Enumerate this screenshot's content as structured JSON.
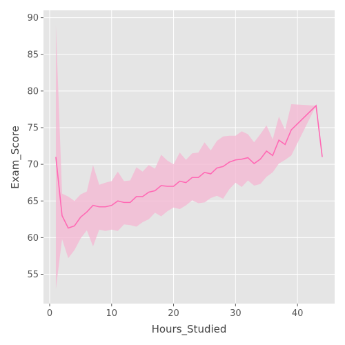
{
  "chart_data": {
    "type": "line",
    "xlabel": "Hours_Studied",
    "ylabel": "Exam_Score",
    "xlim": [
      -1,
      46
    ],
    "ylim": [
      51,
      91
    ],
    "xticks": [
      0,
      10,
      20,
      30,
      40
    ],
    "yticks": [
      55,
      60,
      65,
      70,
      75,
      80,
      85,
      90
    ],
    "grid": true,
    "colors": {
      "line": "#ff69b4",
      "band": "#f4b6d2",
      "background": "#e5e5e5",
      "grid": "#ffffff"
    },
    "series": [
      {
        "x": [
          1,
          2,
          3,
          4,
          5,
          6,
          7,
          8,
          9,
          10,
          11,
          12,
          13,
          14,
          15,
          16,
          17,
          18,
          19,
          20,
          21,
          22,
          23,
          24,
          25,
          26,
          27,
          28,
          29,
          30,
          31,
          32,
          33,
          34,
          35,
          36,
          37,
          38,
          39,
          43,
          44
        ],
        "y": [
          71.0,
          63.0,
          61.3,
          61.6,
          62.8,
          63.5,
          64.4,
          64.2,
          64.2,
          64.4,
          65.0,
          64.8,
          64.8,
          65.6,
          65.6,
          66.2,
          66.4,
          67.1,
          67.0,
          67.0,
          67.7,
          67.5,
          68.2,
          68.2,
          68.9,
          68.7,
          69.5,
          69.7,
          70.3,
          70.6,
          70.7,
          70.9,
          70.1,
          70.7,
          71.8,
          71.2,
          73.3,
          72.7,
          74.7,
          78.0,
          71.0
        ],
        "lower": [
          53.0,
          59.8,
          57.2,
          58.3,
          59.9,
          61.0,
          58.8,
          61.1,
          60.9,
          61.1,
          60.9,
          61.8,
          61.7,
          61.5,
          62.1,
          62.5,
          63.4,
          62.9,
          63.6,
          64.1,
          63.9,
          64.4,
          65.1,
          64.7,
          64.8,
          65.4,
          65.7,
          65.3,
          66.6,
          67.5,
          66.9,
          67.8,
          67.1,
          67.3,
          68.3,
          68.9,
          70.1,
          70.6,
          71.2,
          78.0,
          71.0
        ],
        "upper": [
          89.0,
          66.0,
          65.6,
          65.0,
          65.9,
          66.3,
          69.9,
          67.2,
          67.5,
          67.7,
          69.0,
          67.7,
          67.8,
          69.6,
          69.0,
          69.9,
          69.4,
          71.3,
          70.5,
          70.0,
          71.6,
          70.6,
          71.5,
          71.6,
          73.0,
          71.9,
          73.2,
          73.8,
          73.9,
          73.9,
          74.5,
          74.1,
          73.0,
          74.1,
          75.3,
          73.4,
          76.5,
          74.7,
          78.2,
          78.0,
          71.0
        ]
      }
    ]
  }
}
